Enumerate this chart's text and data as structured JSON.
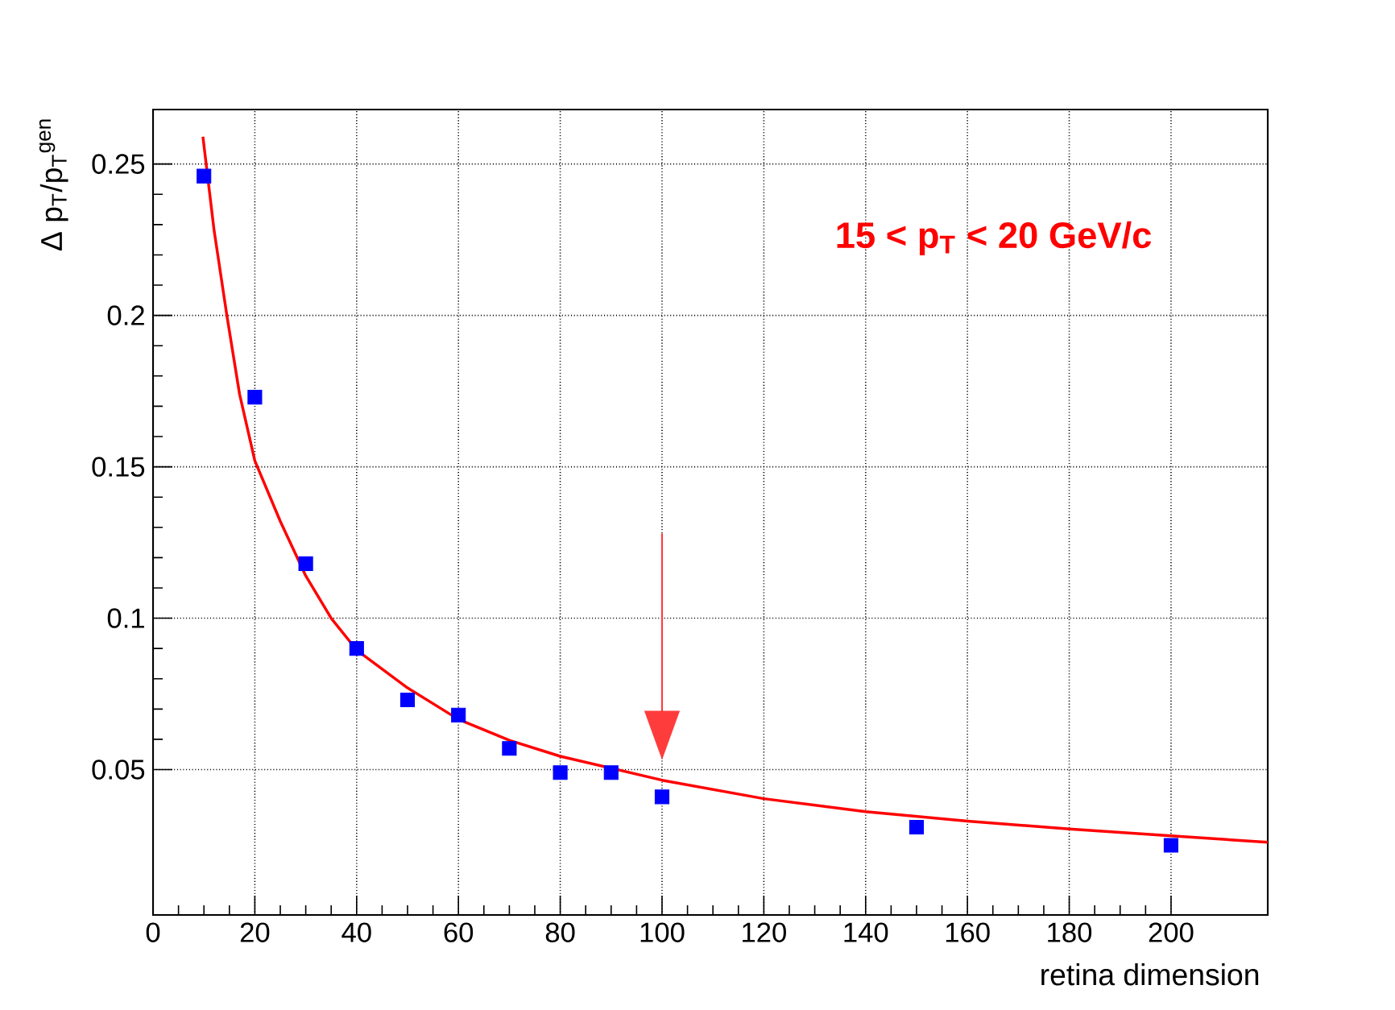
{
  "chart_data": {
    "type": "scatter",
    "xlabel": "retina dimension",
    "ylabel": "Δ p$_{T}$/p$_{T}$$^{gen}$",
    "annotations": [
      "15 < p$_{T}$ < 20 GeV/c"
    ],
    "xlim": [
      0,
      219
    ],
    "ylim": [
      0.002,
      0.268
    ],
    "xticks": [
      0,
      20,
      40,
      60,
      80,
      100,
      120,
      140,
      160,
      180,
      200
    ],
    "yticks": [
      0.05,
      0.1,
      0.15,
      0.2,
      0.25
    ],
    "grid": true,
    "marker": "square",
    "series": [
      {
        "color": "#0000ff",
        "x": [
          10,
          20,
          30,
          40,
          50,
          60,
          70,
          80,
          90,
          100,
          150,
          200
        ],
        "values": [
          0.246,
          0.173,
          0.118,
          0.09,
          0.073,
          0.068,
          0.057,
          0.049,
          0.049,
          0.041,
          0.031,
          0.025
        ]
      },
      {
        "type": "line",
        "color": "#ff0000",
        "marker": "none",
        "x": [
          9.8,
          12,
          14.5,
          17,
          20,
          25,
          30,
          35,
          40,
          50,
          60,
          70,
          80,
          100,
          120,
          140,
          160,
          180,
          200,
          219
        ],
        "values": [
          0.259,
          0.228,
          0.2,
          0.174,
          0.152,
          0.132,
          0.114,
          0.1,
          0.0895,
          0.077,
          0.0666,
          0.0597,
          0.0544,
          0.0465,
          0.0404,
          0.0361,
          0.033,
          0.0304,
          0.0281,
          0.026
        ]
      }
    ]
  }
}
